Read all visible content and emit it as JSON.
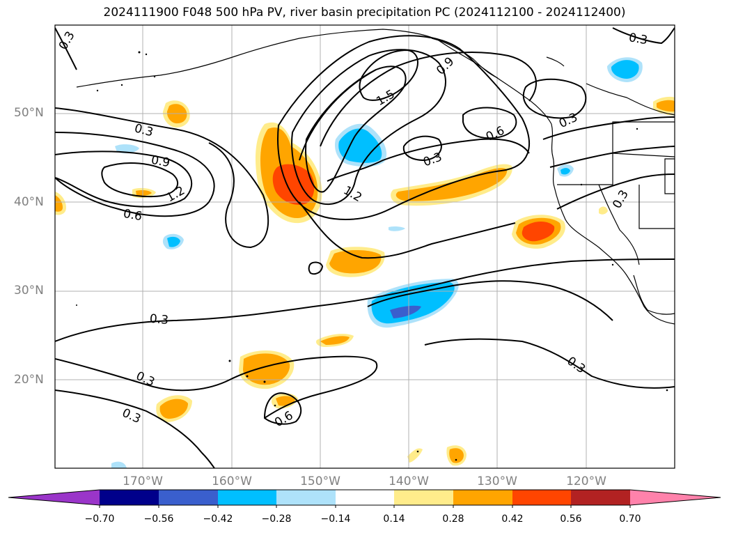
{
  "title": "2024111900 F048 500 hPa PV, river basin precipitation PC (2024112100 - 2024112400)",
  "lat_labels": [
    "50°N",
    "40°N",
    "30°N",
    "20°N"
  ],
  "lon_labels": [
    "170°W",
    "160°W",
    "150°W",
    "140°W",
    "130°W",
    "120°W"
  ],
  "contour_labels": [
    "0.3",
    "0.3",
    "0.9",
    "1.2",
    "0.6",
    "1.5",
    "0.9",
    "0.6",
    "0.3",
    "0.3",
    "1.2",
    "0.3",
    "0.3",
    "0.3",
    "0.3",
    "0.6",
    "0.3",
    "0.3"
  ],
  "colorbar": {
    "ticks": [
      "−0.70",
      "−0.56",
      "−0.42",
      "−0.28",
      "−0.14",
      "0.14",
      "0.28",
      "0.42",
      "0.56",
      "0.70"
    ],
    "colors": [
      "#9a35c9",
      "#00008b",
      "#3a5fcd",
      "#00bfff",
      "#aee2fa",
      "#ffffff",
      "#ffec8b",
      "#ffa500",
      "#ff4500",
      "#b22222",
      "#ff82ab"
    ]
  }
}
